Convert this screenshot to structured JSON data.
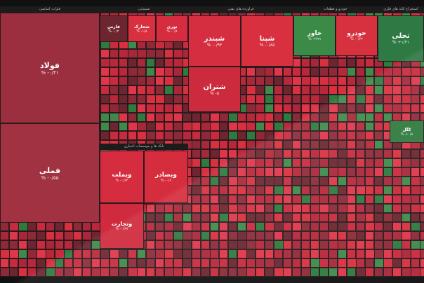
{
  "sectors": [
    "فلزات اساسی",
    "شیمیایی",
    "فراورده های نفتی",
    "خودرو و قطعات",
    "استخراج کانه های فلزی",
    "بانک ها و موسسات اعتباری"
  ],
  "tiles": [
    {
      "symbol": "فولاد",
      "change": "% -۰/۴۱"
    },
    {
      "symbol": "فملی",
      "change": "% -۰/۵۵"
    },
    {
      "symbol": "شبندر",
      "change": "% -۰/۹۴"
    },
    {
      "symbol": "شپنا",
      "change": "% -۰/۸۵"
    },
    {
      "symbol": "شتران",
      "change": "% -۵"
    },
    {
      "symbol": "خاور",
      "change": "% -۲/۹۹"
    },
    {
      "symbol": "خودرو",
      "change": "% -۰/۶۲"
    },
    {
      "symbol": "تجلی",
      "change": "% +۱/۳۱"
    },
    {
      "symbol": "وبملت",
      "change": "% -۰/۶۲"
    },
    {
      "symbol": "وبصادر",
      "change": "% -۰/۶"
    },
    {
      "symbol": "وتجارت",
      "change": "% -۰/۶۷"
    },
    {
      "symbol": "فارس",
      "change": "% -۰/۲"
    },
    {
      "symbol": "شخارک",
      "change": "% -۱/۸"
    },
    {
      "symbol": "نوری",
      "change": "% -۰/۸"
    },
    {
      "symbol": "کگل",
      "change": "% +۰/۸"
    }
  ]
}
